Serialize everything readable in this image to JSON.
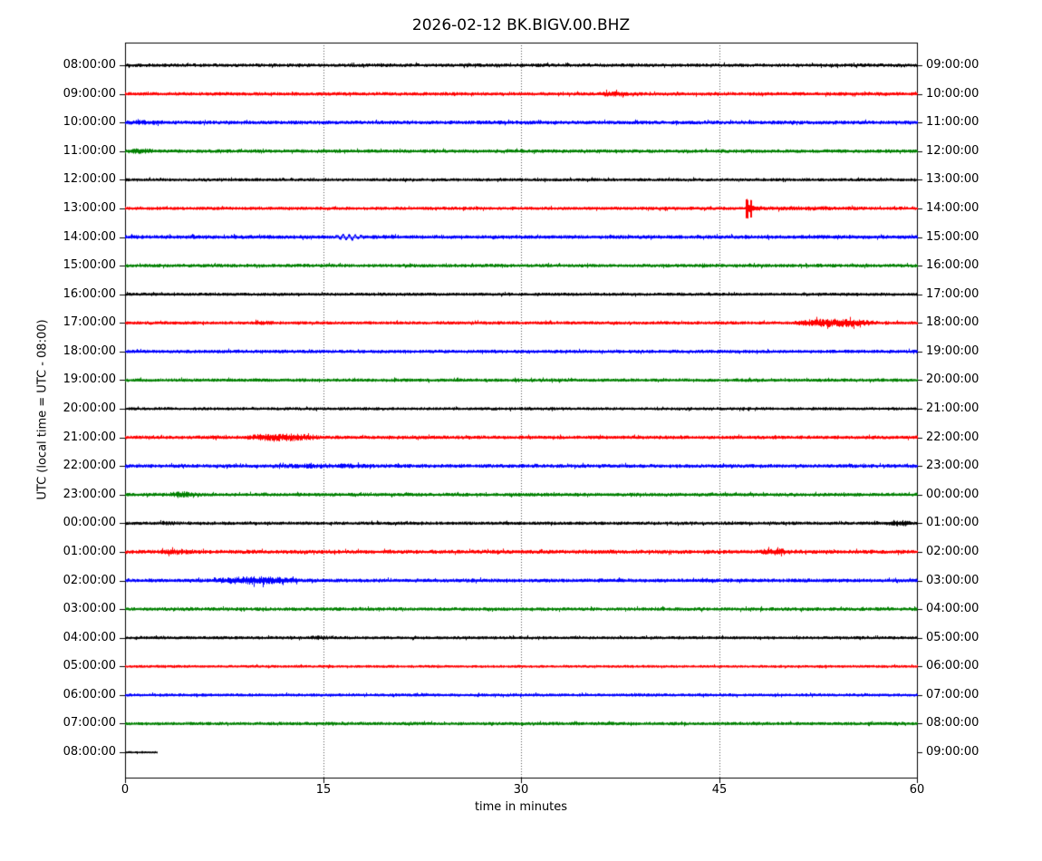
{
  "chart_data": {
    "type": "line",
    "subtype": "helicorder-dayplot",
    "title": "2026-02-12 BK.BIGV.00.BHZ",
    "xlabel": "time in minutes",
    "ylabel": "UTC (local time = UTC - 08:00)",
    "x_ticks": [
      0,
      15,
      30,
      45,
      60
    ],
    "x_range_minutes": [
      0,
      60
    ],
    "grid_vertical_minutes": [
      15,
      30,
      45
    ],
    "row_interval_minutes": 60,
    "grid_on": true,
    "legend": null,
    "trace_color_cycle": [
      "#000000",
      "#ff0000",
      "#0000ff",
      "#008000"
    ],
    "rows": [
      {
        "utc_label": "08:00:00",
        "end_label": "09:00:00",
        "color": "#000000",
        "amp": 1.7,
        "span": [
          0,
          60
        ],
        "events": []
      },
      {
        "utc_label": "09:00:00",
        "end_label": "10:00:00",
        "color": "#ff0000",
        "amp": 1.7,
        "span": [
          0,
          60
        ],
        "events": [
          {
            "type": "burst",
            "start": 35.6,
            "end": 38.2,
            "mult": 1.5
          }
        ]
      },
      {
        "utc_label": "10:00:00",
        "end_label": "11:00:00",
        "color": "#0000ff",
        "amp": 1.8,
        "span": [
          0,
          60
        ],
        "events": [
          {
            "type": "burst",
            "start": 0,
            "end": 3,
            "mult": 1.35
          }
        ]
      },
      {
        "utc_label": "11:00:00",
        "end_label": "12:00:00",
        "color": "#008000",
        "amp": 1.7,
        "span": [
          0,
          60
        ],
        "events": [
          {
            "type": "burst",
            "start": 0,
            "end": 2.2,
            "mult": 1.6
          }
        ]
      },
      {
        "utc_label": "12:00:00",
        "end_label": "13:00:00",
        "color": "#000000",
        "amp": 1.5,
        "span": [
          0,
          60
        ],
        "events": []
      },
      {
        "utc_label": "13:00:00",
        "end_label": "14:00:00",
        "color": "#ff0000",
        "amp": 1.6,
        "span": [
          0,
          60
        ],
        "events": [
          {
            "type": "spike",
            "at": 47.1,
            "height": 11,
            "tail": 2.2
          },
          {
            "type": "burst",
            "start": 47.5,
            "end": 56,
            "mult": 1.35
          }
        ]
      },
      {
        "utc_label": "14:00:00",
        "end_label": "15:00:00",
        "color": "#0000ff",
        "amp": 1.8,
        "span": [
          0,
          60
        ],
        "events": [
          {
            "type": "wiggle",
            "start": 15.7,
            "end": 18.2,
            "amp": 2.6,
            "freq": 2.2
          }
        ]
      },
      {
        "utc_label": "15:00:00",
        "end_label": "16:00:00",
        "color": "#008000",
        "amp": 1.7,
        "span": [
          0,
          60
        ],
        "events": []
      },
      {
        "utc_label": "16:00:00",
        "end_label": "17:00:00",
        "color": "#000000",
        "amp": 1.5,
        "span": [
          0,
          60
        ],
        "events": []
      },
      {
        "utc_label": "17:00:00",
        "end_label": "18:00:00",
        "color": "#ff0000",
        "amp": 1.6,
        "span": [
          0,
          60
        ],
        "events": [
          {
            "type": "burst",
            "start": 50.5,
            "end": 57,
            "mult": 2.5
          },
          {
            "type": "burst",
            "start": 9.5,
            "end": 11.5,
            "mult": 1.3
          }
        ]
      },
      {
        "utc_label": "18:00:00",
        "end_label": "19:00:00",
        "color": "#0000ff",
        "amp": 1.7,
        "span": [
          0,
          60
        ],
        "events": []
      },
      {
        "utc_label": "19:00:00",
        "end_label": "20:00:00",
        "color": "#008000",
        "amp": 1.6,
        "span": [
          0,
          60
        ],
        "events": []
      },
      {
        "utc_label": "20:00:00",
        "end_label": "21:00:00",
        "color": "#000000",
        "amp": 1.5,
        "span": [
          0,
          60
        ],
        "events": []
      },
      {
        "utc_label": "21:00:00",
        "end_label": "22:00:00",
        "color": "#ff0000",
        "amp": 1.7,
        "span": [
          0,
          60
        ],
        "events": [
          {
            "type": "burst",
            "start": 9,
            "end": 14.8,
            "mult": 2.2
          }
        ]
      },
      {
        "utc_label": "22:00:00",
        "end_label": "23:00:00",
        "color": "#0000ff",
        "amp": 1.8,
        "span": [
          0,
          60
        ],
        "events": [
          {
            "type": "burst",
            "start": 11,
            "end": 19,
            "mult": 1.3
          }
        ]
      },
      {
        "utc_label": "23:00:00",
        "end_label": "00:00:00",
        "color": "#008000",
        "amp": 1.7,
        "span": [
          0,
          60
        ],
        "events": [
          {
            "type": "burst",
            "start": 3.2,
            "end": 5.4,
            "mult": 1.9
          }
        ]
      },
      {
        "utc_label": "00:00:00",
        "end_label": "01:00:00",
        "color": "#000000",
        "amp": 1.6,
        "span": [
          0,
          60
        ],
        "events": [
          {
            "type": "burst",
            "start": 57.5,
            "end": 59.6,
            "mult": 1.8
          },
          {
            "type": "burst",
            "start": 2.5,
            "end": 4,
            "mult": 1.3
          }
        ]
      },
      {
        "utc_label": "01:00:00",
        "end_label": "02:00:00",
        "color": "#ff0000",
        "amp": 1.9,
        "span": [
          0,
          60
        ],
        "events": [
          {
            "type": "burst",
            "start": 2.5,
            "end": 5,
            "mult": 1.6
          },
          {
            "type": "burst",
            "start": 48,
            "end": 50.5,
            "mult": 1.7
          }
        ]
      },
      {
        "utc_label": "02:00:00",
        "end_label": "03:00:00",
        "color": "#0000ff",
        "amp": 1.8,
        "span": [
          0,
          60
        ],
        "events": [
          {
            "type": "burst",
            "start": 6.8,
            "end": 13.2,
            "mult": 2.2
          }
        ]
      },
      {
        "utc_label": "03:00:00",
        "end_label": "04:00:00",
        "color": "#008000",
        "amp": 1.7,
        "span": [
          0,
          60
        ],
        "events": []
      },
      {
        "utc_label": "04:00:00",
        "end_label": "05:00:00",
        "color": "#000000",
        "amp": 1.5,
        "span": [
          0,
          60
        ],
        "events": [
          {
            "type": "burst",
            "start": 14,
            "end": 15.5,
            "mult": 1.4
          }
        ]
      },
      {
        "utc_label": "05:00:00",
        "end_label": "06:00:00",
        "color": "#ff0000",
        "amp": 1.3,
        "span": [
          0,
          60
        ],
        "events": []
      },
      {
        "utc_label": "06:00:00",
        "end_label": "07:00:00",
        "color": "#0000ff",
        "amp": 1.5,
        "span": [
          0,
          60
        ],
        "events": []
      },
      {
        "utc_label": "07:00:00",
        "end_label": "08:00:00",
        "color": "#008000",
        "amp": 1.6,
        "span": [
          0,
          60
        ],
        "events": []
      },
      {
        "utc_label": "08:00:00",
        "end_label": "09:00:00",
        "color": "#000000",
        "amp": 1.2,
        "span": [
          0,
          2.4
        ],
        "events": []
      }
    ]
  }
}
